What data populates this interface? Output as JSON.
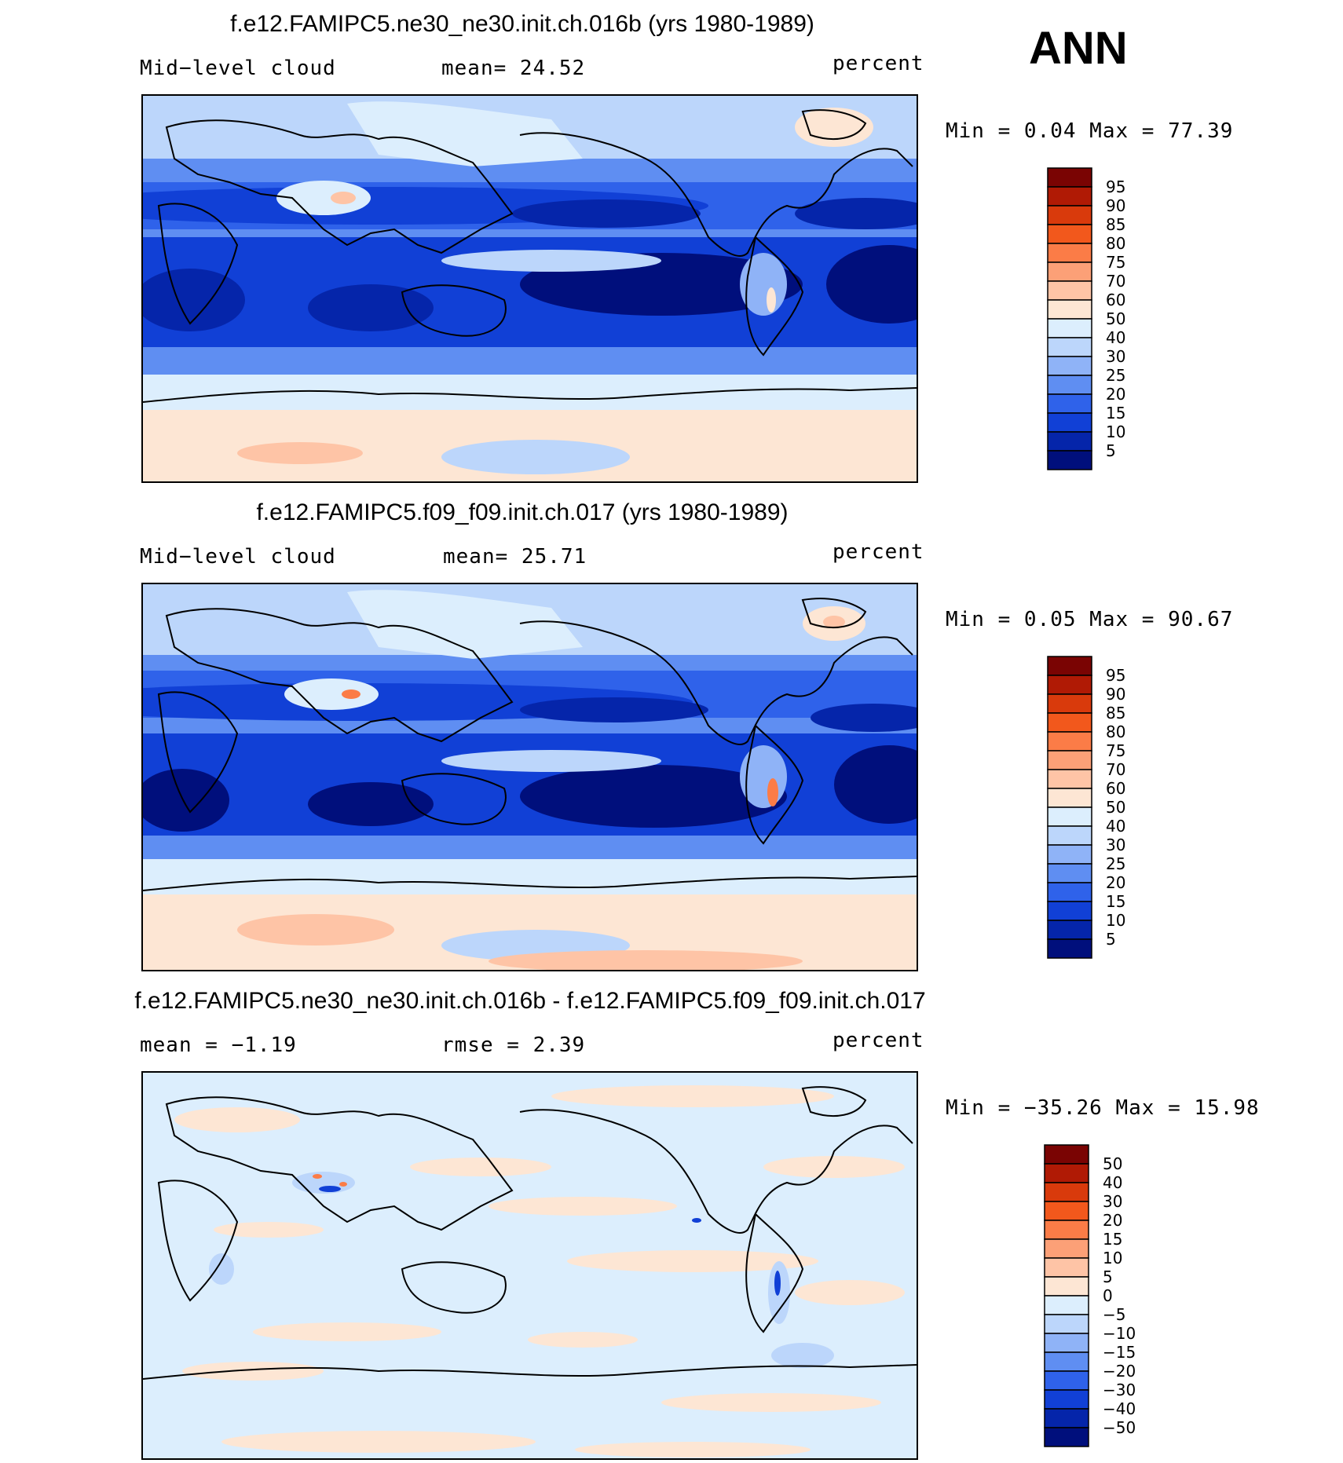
{
  "season": "ANN",
  "panels": [
    {
      "title": "f.e12.FAMIPC5.ne30_ne30.init.ch.016b (yrs 1980-1989)",
      "left_label": "Mid−level cloud",
      "center_label": "mean=   24.52",
      "units": "percent",
      "minmax": "Min =     0.04  Max =   77.39"
    },
    {
      "title": "f.e12.FAMIPC5.f09_f09.init.ch.017 (yrs 1980-1989)",
      "left_label": "Mid−level cloud",
      "center_label": "mean=   25.71",
      "units": "percent",
      "minmax": "Min =     0.05  Max =   90.67"
    },
    {
      "title": "f.e12.FAMIPC5.ne30_ne30.init.ch.016b - f.e12.FAMIPC5.f09_f09.init.ch.017",
      "left_label": "mean =   −1.19",
      "center_label": "rmse =     2.39",
      "units": "percent",
      "minmax": "Min = −35.26  Max =   15.98"
    }
  ],
  "colorbars": {
    "abs": {
      "labels": [
        "95",
        "90",
        "85",
        "80",
        "75",
        "70",
        "60",
        "50",
        "40",
        "30",
        "25",
        "20",
        "15",
        "10",
        "5"
      ],
      "colors": [
        "#7a0403",
        "#b01a05",
        "#d93a0c",
        "#f2581c",
        "#fb7c47",
        "#fca077",
        "#fec4a6",
        "#fde6d4",
        "#dceefd",
        "#bcd6fb",
        "#8fb3f7",
        "#5f8ef2",
        "#2f62ea",
        "#1140d6",
        "#0525aa",
        "#000f7c"
      ]
    },
    "diff": {
      "labels": [
        "50",
        "40",
        "30",
        "20",
        "15",
        "10",
        "5",
        "0",
        "−5",
        "−10",
        "−15",
        "−20",
        "−30",
        "−40",
        "−50"
      ],
      "colors": [
        "#7a0403",
        "#b01a05",
        "#d93a0c",
        "#f2581c",
        "#fb7c47",
        "#fca077",
        "#fec4a6",
        "#fde6d4",
        "#dceefd",
        "#bcd6fb",
        "#8fb3f7",
        "#5f8ef2",
        "#2f62ea",
        "#1140d6",
        "#0525aa",
        "#000f7c"
      ]
    }
  }
}
